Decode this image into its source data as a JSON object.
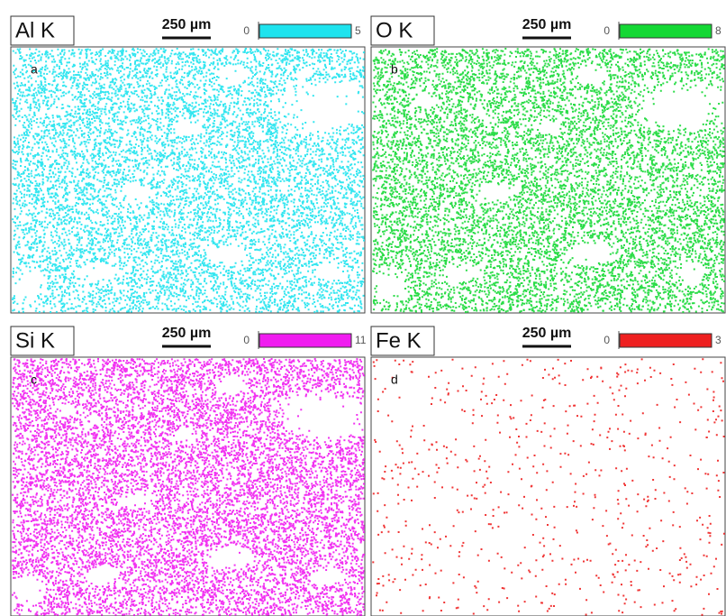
{
  "panels": [
    {
      "element": "Al K",
      "scale": "250 µm",
      "min": 0,
      "max": 5,
      "letter": "a",
      "color": "#1ee3ee",
      "density": 0.85
    },
    {
      "element": "O K",
      "scale": "250 µm",
      "min": 0,
      "max": 8,
      "letter": "b",
      "color": "#14d834",
      "density": 0.9
    },
    {
      "element": "Si K",
      "scale": "250 µm",
      "min": 0,
      "max": 11,
      "letter": "c",
      "color": "#f01cf0",
      "density": 1.0
    },
    {
      "element": "Fe K",
      "scale": "250 µm",
      "min": 0,
      "max": 3,
      "letter": "d",
      "color": "#ee2020",
      "density": 0.06
    }
  ]
}
